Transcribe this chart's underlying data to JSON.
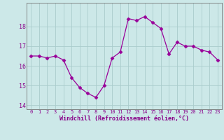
{
  "x": [
    0,
    1,
    2,
    3,
    4,
    5,
    6,
    7,
    8,
    9,
    10,
    11,
    12,
    13,
    14,
    15,
    16,
    17,
    18,
    19,
    20,
    21,
    22,
    23
  ],
  "y": [
    16.5,
    16.5,
    16.4,
    16.5,
    16.3,
    15.4,
    14.9,
    14.6,
    14.4,
    15.0,
    16.4,
    16.7,
    18.4,
    18.3,
    18.5,
    18.2,
    17.9,
    16.6,
    17.2,
    17.0,
    17.0,
    16.8,
    16.7,
    16.3
  ],
  "line_color": "#990099",
  "marker": "D",
  "marker_size": 2.5,
  "bg_color": "#cce8e8",
  "grid_color": "#aacccc",
  "tick_color": "#880088",
  "label_color": "#880088",
  "xlabel": "Windchill (Refroidissement éolien,°C)",
  "ylim": [
    13.8,
    19.2
  ],
  "yticks": [
    14,
    15,
    16,
    17,
    18
  ],
  "xticks": [
    0,
    1,
    2,
    3,
    4,
    5,
    6,
    7,
    8,
    9,
    10,
    11,
    12,
    13,
    14,
    15,
    16,
    17,
    18,
    19,
    20,
    21,
    22,
    23
  ],
  "xtick_labels": [
    "0",
    "1",
    "2",
    "3",
    "4",
    "5",
    "6",
    "7",
    "8",
    "9",
    "10",
    "11",
    "12",
    "13",
    "14",
    "15",
    "16",
    "17",
    "18",
    "19",
    "20",
    "21",
    "22",
    "23"
  ]
}
